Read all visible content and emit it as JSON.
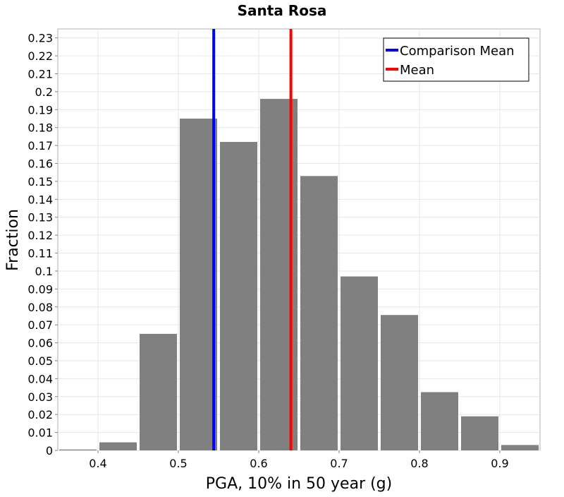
{
  "chart_data": {
    "type": "bar",
    "title": "Santa Rosa",
    "xlabel": "PGA, 10% in 50 year (g)",
    "ylabel": "Fraction",
    "xlim": [
      0.35,
      0.95
    ],
    "ylim": [
      0,
      0.235
    ],
    "grid": true,
    "bin_width": 0.05,
    "bin_centers": [
      0.375,
      0.425,
      0.475,
      0.525,
      0.575,
      0.625,
      0.675,
      0.725,
      0.775,
      0.825,
      0.875,
      0.925
    ],
    "values": [
      0.0005,
      0.0045,
      0.065,
      0.185,
      0.172,
      0.196,
      0.153,
      0.097,
      0.0755,
      0.0325,
      0.019,
      0.003
    ],
    "bar_color": "#808080",
    "x_ticks": [
      0.4,
      0.5,
      0.6,
      0.7,
      0.8,
      0.9
    ],
    "x_tick_labels": [
      "0.4",
      "0.5",
      "0.6",
      "0.7",
      "0.8",
      "0.9"
    ],
    "y_ticks": [
      0,
      0.01,
      0.02,
      0.03,
      0.04,
      0.05,
      0.06,
      0.07,
      0.08,
      0.09,
      0.1,
      0.11,
      0.12,
      0.13,
      0.14,
      0.15,
      0.16,
      0.17,
      0.18,
      0.19,
      0.2,
      0.21,
      0.22,
      0.23
    ],
    "y_tick_labels": [
      "0",
      "0.01",
      "0.02",
      "0.03",
      "0.04",
      "0.05",
      "0.06",
      "0.07",
      "0.08",
      "0.09",
      "0.1",
      "0.11",
      "0.12",
      "0.13",
      "0.14",
      "0.15",
      "0.16",
      "0.17",
      "0.18",
      "0.19",
      "0.2",
      "0.21",
      "0.22",
      "0.23"
    ],
    "lines": [
      {
        "name": "Comparison Mean",
        "x": 0.544,
        "color": "#0000ff"
      },
      {
        "name": "Mean",
        "x": 0.64,
        "color": "#ff0000"
      }
    ],
    "legend": {
      "position": "top-right",
      "items": [
        {
          "label": "Comparison Mean",
          "color": "#0000ff"
        },
        {
          "label": "Mean",
          "color": "#ff0000"
        }
      ]
    }
  }
}
